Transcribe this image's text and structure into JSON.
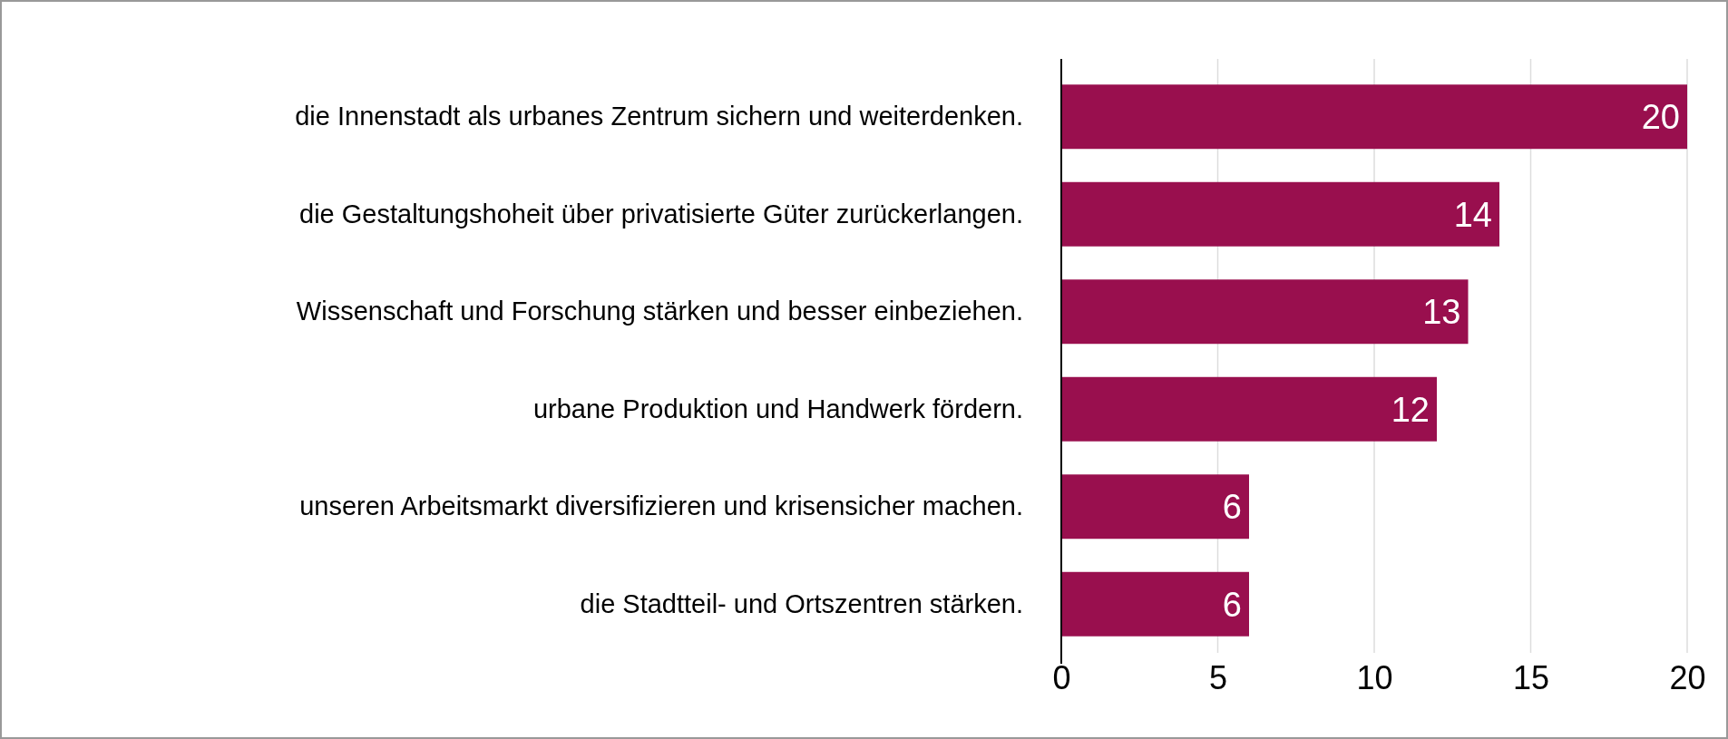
{
  "chart_data": {
    "type": "bar",
    "orientation": "horizontal",
    "categories": [
      "die Innenstadt als urbanes Zentrum sichern und weiterdenken.",
      "die Gestaltungshoheit über privatisierte Güter zurückerlangen.",
      "Wissenschaft und Forschung stärken und besser einbeziehen.",
      "urbane Produktion und Handwerk fördern.",
      "unseren Arbeitsmarkt diversifizieren und krisensicher machen.",
      "die Stadtteil- und Ortszentren stärken."
    ],
    "values": [
      20,
      14,
      13,
      12,
      6,
      6
    ],
    "color": "#990f4e",
    "xlim": [
      0,
      20
    ],
    "xticks": [
      0,
      5,
      10,
      15,
      20
    ],
    "grid": "x",
    "data_labels": true
  }
}
